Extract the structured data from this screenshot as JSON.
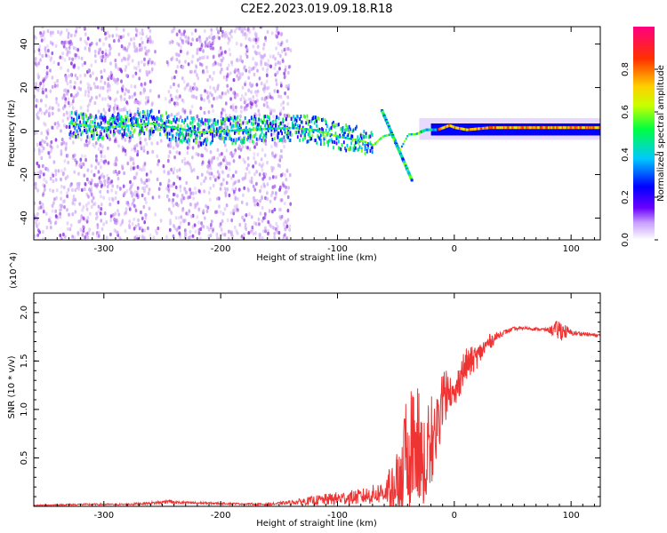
{
  "chart_data": [
    {
      "type": "heatmap",
      "title": "C2E2.2023.019.09.18.R18",
      "xlabel": "Height of straight line (km)",
      "ylabel": "Frequency (Hz)",
      "xlim": [
        -360,
        125
      ],
      "ylim": [
        -50,
        48
      ],
      "xticks": [
        -300,
        -200,
        -100,
        0,
        100
      ],
      "xtick_labels": [
        "-300",
        "-200",
        "-100",
        "0",
        "100"
      ],
      "yticks": [
        40,
        20,
        0,
        -20,
        -40
      ],
      "ytick_labels": [
        "40",
        "20",
        "0",
        "-20",
        "-40"
      ],
      "colorbar": {
        "label": "Normalized spectral amplitude",
        "range": [
          0,
          1
        ],
        "ticks": [
          0.0,
          0.2,
          0.4,
          0.6,
          0.8
        ],
        "tick_labels": [
          "0.0",
          "0.2",
          "0.4",
          "0.6",
          "0.8"
        ],
        "colormap": [
          "#ffffff",
          "#6a00ff",
          "#0000ff",
          "#00c8ff",
          "#00ff40",
          "#c8ff00",
          "#ffd000",
          "#ff3000",
          "#ff0080"
        ]
      },
      "ridge": {
        "x": [
          -360,
          -330,
          -300,
          -260,
          -220,
          -180,
          -140,
          -120,
          -100,
          -80,
          -70,
          -62,
          -55,
          -48,
          -40,
          -34,
          -25,
          -15,
          -5,
          0,
          10,
          30,
          60,
          90,
          125
        ],
        "y": [
          2,
          3,
          1,
          3,
          -1,
          0,
          1,
          0,
          -3,
          -5,
          -7,
          -3,
          -2,
          -10,
          -2,
          -2,
          0,
          0,
          2,
          1,
          0,
          1,
          1,
          1,
          1
        ]
      },
      "regions": [
        {
          "name": "speckle",
          "x_range": [
            -360,
            -140
          ],
          "amplitude": 0.1
        },
        {
          "name": "broadband",
          "x_range": [
            -330,
            -70
          ],
          "amplitude": 0.25
        },
        {
          "name": "strong-line",
          "x_range": [
            -30,
            125
          ],
          "amplitude": 0.9
        }
      ]
    },
    {
      "type": "line",
      "title": "",
      "xlabel": "Height of straight line (km)",
      "ylabel": "SNR (10 * v/v)",
      "y_multiplier": "(x10^4)",
      "xlim": [
        -360,
        125
      ],
      "ylim": [
        0,
        2.2
      ],
      "xticks": [
        -300,
        -200,
        -100,
        0,
        100
      ],
      "xtick_labels": [
        "-300",
        "-200",
        "-100",
        "0",
        "100"
      ],
      "yticks": [
        0.5,
        1.0,
        1.5,
        2.0
      ],
      "ytick_labels": [
        "0.5",
        "1.0",
        "1.5",
        "2.0"
      ],
      "color": "#ee3333",
      "series": [
        {
          "name": "SNR",
          "x": [
            -360,
            -320,
            -280,
            -250,
            -245,
            -240,
            -200,
            -160,
            -140,
            -120,
            -100,
            -80,
            -70,
            -60,
            -50,
            -45,
            -40,
            -35,
            -30,
            -25,
            -20,
            -15,
            -10,
            -5,
            0,
            5,
            10,
            15,
            20,
            30,
            40,
            50,
            60,
            70,
            80,
            90,
            100,
            110,
            125
          ],
          "y": [
            0.01,
            0.02,
            0.02,
            0.04,
            0.06,
            0.04,
            0.03,
            0.02,
            0.04,
            0.06,
            0.08,
            0.1,
            0.12,
            0.15,
            0.25,
            0.4,
            0.6,
            0.8,
            0.7,
            0.5,
            0.7,
            0.95,
            1.15,
            1.25,
            1.1,
            1.35,
            1.45,
            1.5,
            1.55,
            1.7,
            1.78,
            1.83,
            1.84,
            1.83,
            1.82,
            1.82,
            1.79,
            1.78,
            1.76
          ],
          "noise": [
            0.005,
            0.008,
            0.008,
            0.02,
            0.02,
            0.015,
            0.01,
            0.01,
            0.02,
            0.05,
            0.07,
            0.08,
            0.1,
            0.12,
            0.3,
            0.45,
            0.55,
            0.55,
            0.55,
            0.5,
            0.45,
            0.35,
            0.3,
            0.2,
            0.15,
            0.2,
            0.18,
            0.15,
            0.12,
            0.08,
            0.03,
            0.02,
            0.015,
            0.015,
            0.02,
            0.12,
            0.03,
            0.02,
            0.02
          ]
        }
      ]
    }
  ]
}
